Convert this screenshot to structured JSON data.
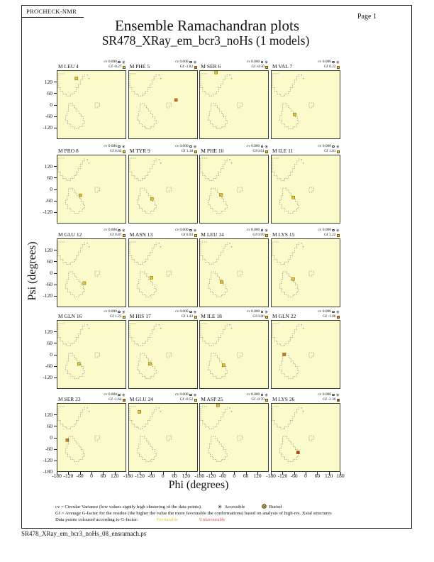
{
  "page": {
    "app_label": "PROCHECK-NMR",
    "title": "Ensemble Ramachandran plots",
    "subtitle": "SR478_XRay_em_bcr3_noHs (1 models)",
    "page_label": "Page 1",
    "footer_filename": "SR478_XRay_em_bcr3_noHs_08_ensramach.ps"
  },
  "axes": {
    "x_label": "Phi (degrees)",
    "y_label": "Psi (degrees)",
    "col_x_ticks": [
      -180,
      -120,
      -60,
      0,
      60,
      120
    ],
    "x_end_tick": 180,
    "row_y_ticks": [
      120,
      60,
      0,
      -60,
      -120
    ],
    "y_end_tick": -180
  },
  "legend": {
    "line1_text": "cv = Circular Variance (low values signify high clustering of the data points).",
    "accessible_label": "Accessible",
    "buried_label": "Buried",
    "line2_text": "Gf = Average G-factor for the residue (the higher the value the more favourable the conformations)  based on analysis of high-res. Xstal structures",
    "line3_text": "Data points coloured according to G-factor:",
    "favourable_label": "Favourable",
    "unfavourable_label": "Unfavourable"
  },
  "colors": {
    "plot_background": "#fbfacb",
    "favourable": "#e3c62f",
    "mid_unfavourable": "#d4731e",
    "unfavourable": "#c43a14",
    "favourable_text": "#e3c62f",
    "unfavourable_text": "#e0503a"
  },
  "chart_data": {
    "type": "scatter",
    "title": "Ensemble Ramachandran plots",
    "subtitle": "SR478_XRay_em_bcr3_noHs (1 models)",
    "xlabel": "Phi (degrees)",
    "ylabel": "Psi (degrees)",
    "xlim": [
      -180,
      180
    ],
    "ylim": [
      -180,
      180
    ],
    "grid": false,
    "layout": {
      "rows": 5,
      "cols": 4
    },
    "subplots": [
      {
        "residue": "M LEU 4",
        "cv": "0.000",
        "gf": "-0.27",
        "gf_color": "#e3c62f",
        "point": {
          "phi": -80,
          "psi": 140,
          "color": "#e3c62f"
        }
      },
      {
        "residue": "M PHE 5",
        "cv": "0.000",
        "gf": "-1.82",
        "gf_color": "#d4731e",
        "point": {
          "phi": 68,
          "psi": 25,
          "color": "#d4731e"
        }
      },
      {
        "residue": "M SER 6",
        "cv": "0.000",
        "gf": "-0.50",
        "gf_color": "#e3c62f",
        "point": {
          "phi": -95,
          "psi": 172,
          "color": "#e3c62f"
        }
      },
      {
        "residue": "M VAL 7",
        "cv": "0.000",
        "gf": "0.22",
        "gf_color": "#e3c62f",
        "point": {
          "phi": -58,
          "psi": -52,
          "color": "#e3c62f"
        }
      },
      {
        "residue": "M PRO 8",
        "cv": "0.000",
        "gf": "0.62",
        "gf_color": "#e3c62f",
        "point": {
          "phi": -59,
          "psi": -33,
          "color": "#e3c62f"
        }
      },
      {
        "residue": "M TYR 9",
        "cv": "0.000",
        "gf": "1.18",
        "gf_color": "#e3c62f",
        "point": {
          "phi": -59,
          "psi": -52,
          "color": "#e3c62f"
        }
      },
      {
        "residue": "M PHE 10",
        "cv": "0.000",
        "gf": "0.61",
        "gf_color": "#e3c62f",
        "point": {
          "phi": -68,
          "psi": -31,
          "color": "#e3c62f"
        }
      },
      {
        "residue": "M ILE 11",
        "cv": "0.000",
        "gf": "1.01",
        "gf_color": "#e3c62f",
        "point": {
          "phi": -65,
          "psi": -45,
          "color": "#e3c62f"
        }
      },
      {
        "residue": "M GLU 12",
        "cv": "0.000",
        "gf": "0.87",
        "gf_color": "#e3c62f",
        "point": {
          "phi": -38,
          "psi": -55,
          "color": "#e3c62f"
        }
      },
      {
        "residue": "M ASN 13",
        "cv": "0.000",
        "gf": "0.93",
        "gf_color": "#e3c62f",
        "point": {
          "phi": -62,
          "psi": -26,
          "color": "#e3c62f"
        }
      },
      {
        "residue": "M LEU 14",
        "cv": "0.000",
        "gf": "0.99",
        "gf_color": "#e3c62f",
        "point": {
          "phi": -66,
          "psi": -48,
          "color": "#e3c62f"
        }
      },
      {
        "residue": "M LYS 15",
        "cv": "0.000",
        "gf": "1.22",
        "gf_color": "#e3c62f",
        "point": {
          "phi": -66,
          "psi": -33,
          "color": "#e3c62f"
        }
      },
      {
        "residue": "M GLN 16",
        "cv": "0.000",
        "gf": "1.23",
        "gf_color": "#e3c62f",
        "point": {
          "phi": -66,
          "psi": -50,
          "color": "#e3c62f"
        }
      },
      {
        "residue": "M HIS 17",
        "cv": "0.000",
        "gf": "1.43",
        "gf_color": "#e3c62f",
        "point": {
          "phi": -70,
          "psi": -50,
          "color": "#e3c62f"
        }
      },
      {
        "residue": "M ILE 18",
        "cv": "0.000",
        "gf": "0.80",
        "gf_color": "#e3c62f",
        "point": {
          "phi": -55,
          "psi": -58,
          "color": "#e3c62f"
        }
      },
      {
        "residue": "M GLN 22",
        "cv": "0.000",
        "gf": "-1.06",
        "gf_color": "#d4731e",
        "point": {
          "phi": -114,
          "psi": 0,
          "color": "#d4731e"
        }
      },
      {
        "residue": "M SER 23",
        "cv": "0.000",
        "gf": "-1.64",
        "gf_color": "#d4731e",
        "point": {
          "phi": -128,
          "psi": -14,
          "color": "#d4731e"
        }
      },
      {
        "residue": "M GLU 24",
        "cv": "0.000",
        "gf": "-0.52",
        "gf_color": "#e3c62f",
        "point": {
          "phi": -125,
          "psi": 137,
          "color": "#e3c62f"
        }
      },
      {
        "residue": "M ASP 25",
        "cv": "0.000",
        "gf": "-0.70",
        "gf_color": "#e3c62f",
        "point": {
          "phi": -85,
          "psi": 172,
          "color": "#e3c62f"
        }
      },
      {
        "residue": "M LYS 26",
        "cv": "0.000",
        "gf": "-2.30",
        "gf_color": "#c43a14",
        "point": {
          "phi": -40,
          "psi": -80,
          "color": "#c43a14"
        }
      }
    ]
  }
}
